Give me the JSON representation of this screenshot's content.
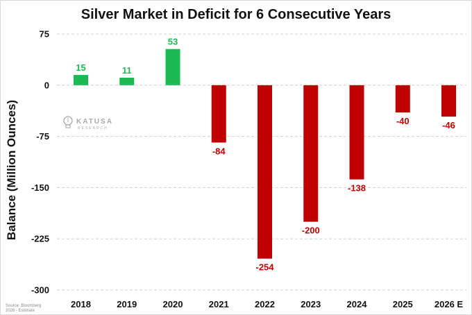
{
  "chart_data": {
    "type": "bar",
    "title": "Silver Market in Deficit for 6 Consecutive Years",
    "xlabel": "",
    "ylabel": "Balance (Million Ounces)",
    "categories": [
      "2018",
      "2019",
      "2020",
      "2021",
      "2022",
      "2023",
      "2024",
      "2025",
      "2026 E"
    ],
    "values": [
      15,
      11,
      53,
      -84,
      -254,
      -200,
      -138,
      -40,
      -46
    ],
    "ylim": [
      -300,
      75
    ],
    "yticks": [
      75,
      0,
      -75,
      -150,
      -225,
      -300
    ],
    "grid": true,
    "colors": {
      "positive": "#1db954",
      "negative": "#c00000"
    }
  },
  "watermark": {
    "name": "KATUSA",
    "sub": "RESEARCH"
  },
  "source": {
    "line1": "Source: Bloomberg",
    "line2": "2026 - Estimate"
  }
}
